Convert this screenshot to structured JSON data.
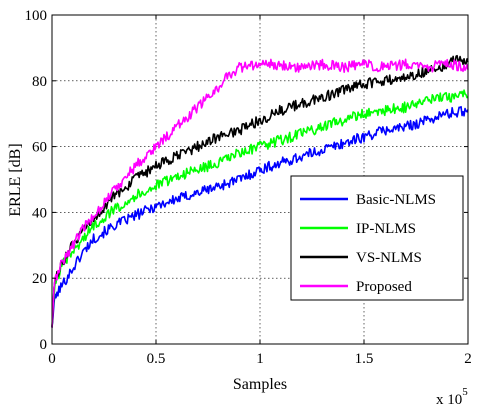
{
  "chart_data": {
    "type": "line",
    "xlabel": "Samples",
    "ylabel": "ERLE [dB]",
    "x_multiplier_label": "x 10",
    "x_multiplier_exp": "5",
    "xlim": [
      0,
      2
    ],
    "ylim": [
      0,
      100
    ],
    "x_ticks": [
      0,
      0.5,
      1,
      1.5,
      2
    ],
    "x_tick_labels": [
      "0",
      "0.5",
      "1",
      "1.5",
      "2"
    ],
    "y_ticks": [
      0,
      20,
      40,
      60,
      80,
      100
    ],
    "y_tick_labels": [
      "0",
      "20",
      "40",
      "60",
      "80",
      "100"
    ],
    "grid": true,
    "legend_position": "lower-right",
    "colors": {
      "Basic-NLMS": "#0000ff",
      "IP-NLMS": "#00ff00",
      "VS-NLMS": "#000000",
      "Proposed": "#ff00ff"
    },
    "series": [
      {
        "name": "Basic-NLMS",
        "color": "#0000ff",
        "x": [
          0,
          0.01,
          0.03,
          0.05,
          0.1,
          0.15,
          0.2,
          0.3,
          0.4,
          0.5,
          0.6,
          0.7,
          0.8,
          0.9,
          1.0,
          1.1,
          1.2,
          1.3,
          1.4,
          1.5,
          1.6,
          1.7,
          1.8,
          1.9,
          2.0
        ],
        "y": [
          5,
          13,
          16,
          18,
          23,
          28,
          32,
          36,
          39,
          42,
          44,
          46,
          48,
          50,
          53,
          55,
          57,
          59,
          61,
          63,
          65,
          66,
          68,
          70,
          71
        ]
      },
      {
        "name": "IP-NLMS",
        "color": "#00ff00",
        "x": [
          0,
          0.01,
          0.03,
          0.05,
          0.1,
          0.15,
          0.2,
          0.3,
          0.4,
          0.5,
          0.6,
          0.7,
          0.8,
          0.9,
          1.0,
          1.1,
          1.2,
          1.3,
          1.4,
          1.5,
          1.6,
          1.7,
          1.8,
          1.9,
          2.0
        ],
        "y": [
          5,
          16,
          21,
          24,
          28,
          32,
          36,
          41,
          45,
          48,
          51,
          53,
          55,
          58,
          60,
          62,
          64,
          66,
          68,
          70,
          71,
          72,
          74,
          75,
          76
        ]
      },
      {
        "name": "VS-NLMS",
        "color": "#000000",
        "x": [
          0,
          0.01,
          0.03,
          0.05,
          0.1,
          0.15,
          0.2,
          0.3,
          0.4,
          0.5,
          0.6,
          0.7,
          0.8,
          0.9,
          1.0,
          1.1,
          1.2,
          1.3,
          1.4,
          1.5,
          1.6,
          1.7,
          1.8,
          1.9,
          1.95,
          2.0
        ],
        "y": [
          5,
          17,
          22,
          25,
          30,
          34,
          38,
          45,
          50,
          54,
          57,
          60,
          63,
          65,
          68,
          71,
          73,
          75,
          77,
          79,
          80,
          81,
          83,
          85,
          87,
          85
        ]
      },
      {
        "name": "Proposed",
        "color": "#ff00ff",
        "x": [
          0,
          0.01,
          0.03,
          0.05,
          0.1,
          0.15,
          0.2,
          0.3,
          0.4,
          0.5,
          0.6,
          0.7,
          0.8,
          0.85,
          0.9,
          1.0,
          1.1,
          1.2,
          1.3,
          1.4,
          1.5,
          1.6,
          1.7,
          1.8,
          1.9,
          2.0
        ],
        "y": [
          5,
          18,
          22,
          25,
          30,
          35,
          39,
          47,
          54,
          60,
          66,
          72,
          78,
          82,
          84,
          85,
          85,
          84,
          85,
          84,
          85,
          84,
          85,
          84,
          85,
          84
        ]
      }
    ]
  }
}
